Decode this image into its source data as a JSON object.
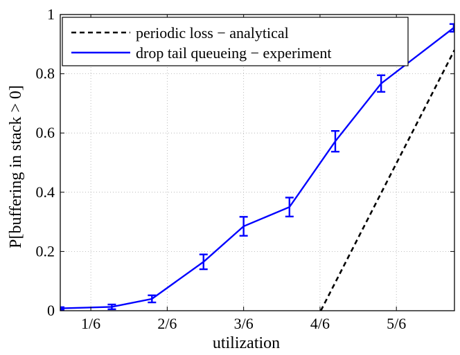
{
  "chart_data": {
    "type": "line",
    "title": "",
    "xlabel": "utilization",
    "ylabel": "P[buffering in stack > 0]",
    "xlim": [
      0.1,
      0.96
    ],
    "ylim": [
      0,
      1
    ],
    "x_ticks": [
      {
        "value": 0.16667,
        "label": "1/6"
      },
      {
        "value": 0.33333,
        "label": "2/6"
      },
      {
        "value": 0.5,
        "label": "3/6"
      },
      {
        "value": 0.66667,
        "label": "4/6"
      },
      {
        "value": 0.83333,
        "label": "5/6"
      }
    ],
    "y_ticks": [
      {
        "value": 0,
        "label": "0"
      },
      {
        "value": 0.2,
        "label": "0.2"
      },
      {
        "value": 0.4,
        "label": "0.4"
      },
      {
        "value": 0.6,
        "label": "0.6"
      },
      {
        "value": 0.8,
        "label": "0.8"
      },
      {
        "value": 1,
        "label": "1"
      }
    ],
    "grid": true,
    "legend_position": "top-left",
    "series": [
      {
        "name": "periodic loss − analytical",
        "style": "dashed",
        "color": "#000000",
        "x": [
          0.6684,
          0.96
        ],
        "y": [
          0.0,
          0.88
        ]
      },
      {
        "name": "drop tail queueing − experiment",
        "style": "solid-errorbars",
        "color": "#0000ff",
        "x": [
          0.1,
          0.2125,
          0.3,
          0.4125,
          0.5,
          0.6,
          0.7,
          0.8,
          0.9583
        ],
        "y": [
          0.008,
          0.013,
          0.04,
          0.165,
          0.285,
          0.35,
          0.572,
          0.767,
          0.955
        ],
        "err": [
          0.004,
          0.008,
          0.012,
          0.025,
          0.032,
          0.032,
          0.035,
          0.028,
          0.013
        ]
      }
    ]
  }
}
